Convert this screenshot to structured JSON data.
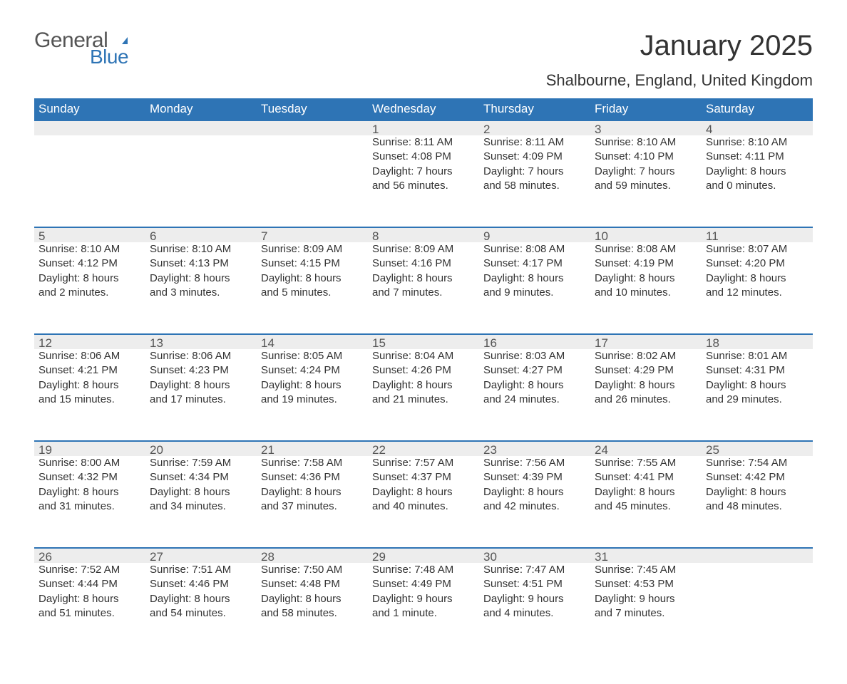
{
  "logo": {
    "word1": "General",
    "word2": "Blue",
    "flag_color": "#2e74b5",
    "word1_color": "#555555",
    "word2_color": "#2e74b5"
  },
  "title": "January 2025",
  "subtitle": "Shalbourne, England, United Kingdom",
  "colors": {
    "header_bg": "#2e74b5",
    "header_text": "#ffffff",
    "daynum_bg": "#ededed",
    "daynum_border": "#2e74b5",
    "text": "#333333",
    "daynum_text": "#555555",
    "background": "#ffffff"
  },
  "fontsize": {
    "title": 40,
    "subtitle": 22,
    "weekday": 17,
    "daynum": 17,
    "body": 15
  },
  "weekdays": [
    "Sunday",
    "Monday",
    "Tuesday",
    "Wednesday",
    "Thursday",
    "Friday",
    "Saturday"
  ],
  "weeks": [
    [
      null,
      null,
      null,
      {
        "n": "1",
        "sr": "Sunrise: 8:11 AM",
        "ss": "Sunset: 4:08 PM",
        "d1": "Daylight: 7 hours",
        "d2": "and 56 minutes."
      },
      {
        "n": "2",
        "sr": "Sunrise: 8:11 AM",
        "ss": "Sunset: 4:09 PM",
        "d1": "Daylight: 7 hours",
        "d2": "and 58 minutes."
      },
      {
        "n": "3",
        "sr": "Sunrise: 8:10 AM",
        "ss": "Sunset: 4:10 PM",
        "d1": "Daylight: 7 hours",
        "d2": "and 59 minutes."
      },
      {
        "n": "4",
        "sr": "Sunrise: 8:10 AM",
        "ss": "Sunset: 4:11 PM",
        "d1": "Daylight: 8 hours",
        "d2": "and 0 minutes."
      }
    ],
    [
      {
        "n": "5",
        "sr": "Sunrise: 8:10 AM",
        "ss": "Sunset: 4:12 PM",
        "d1": "Daylight: 8 hours",
        "d2": "and 2 minutes."
      },
      {
        "n": "6",
        "sr": "Sunrise: 8:10 AM",
        "ss": "Sunset: 4:13 PM",
        "d1": "Daylight: 8 hours",
        "d2": "and 3 minutes."
      },
      {
        "n": "7",
        "sr": "Sunrise: 8:09 AM",
        "ss": "Sunset: 4:15 PM",
        "d1": "Daylight: 8 hours",
        "d2": "and 5 minutes."
      },
      {
        "n": "8",
        "sr": "Sunrise: 8:09 AM",
        "ss": "Sunset: 4:16 PM",
        "d1": "Daylight: 8 hours",
        "d2": "and 7 minutes."
      },
      {
        "n": "9",
        "sr": "Sunrise: 8:08 AM",
        "ss": "Sunset: 4:17 PM",
        "d1": "Daylight: 8 hours",
        "d2": "and 9 minutes."
      },
      {
        "n": "10",
        "sr": "Sunrise: 8:08 AM",
        "ss": "Sunset: 4:19 PM",
        "d1": "Daylight: 8 hours",
        "d2": "and 10 minutes."
      },
      {
        "n": "11",
        "sr": "Sunrise: 8:07 AM",
        "ss": "Sunset: 4:20 PM",
        "d1": "Daylight: 8 hours",
        "d2": "and 12 minutes."
      }
    ],
    [
      {
        "n": "12",
        "sr": "Sunrise: 8:06 AM",
        "ss": "Sunset: 4:21 PM",
        "d1": "Daylight: 8 hours",
        "d2": "and 15 minutes."
      },
      {
        "n": "13",
        "sr": "Sunrise: 8:06 AM",
        "ss": "Sunset: 4:23 PM",
        "d1": "Daylight: 8 hours",
        "d2": "and 17 minutes."
      },
      {
        "n": "14",
        "sr": "Sunrise: 8:05 AM",
        "ss": "Sunset: 4:24 PM",
        "d1": "Daylight: 8 hours",
        "d2": "and 19 minutes."
      },
      {
        "n": "15",
        "sr": "Sunrise: 8:04 AM",
        "ss": "Sunset: 4:26 PM",
        "d1": "Daylight: 8 hours",
        "d2": "and 21 minutes."
      },
      {
        "n": "16",
        "sr": "Sunrise: 8:03 AM",
        "ss": "Sunset: 4:27 PM",
        "d1": "Daylight: 8 hours",
        "d2": "and 24 minutes."
      },
      {
        "n": "17",
        "sr": "Sunrise: 8:02 AM",
        "ss": "Sunset: 4:29 PM",
        "d1": "Daylight: 8 hours",
        "d2": "and 26 minutes."
      },
      {
        "n": "18",
        "sr": "Sunrise: 8:01 AM",
        "ss": "Sunset: 4:31 PM",
        "d1": "Daylight: 8 hours",
        "d2": "and 29 minutes."
      }
    ],
    [
      {
        "n": "19",
        "sr": "Sunrise: 8:00 AM",
        "ss": "Sunset: 4:32 PM",
        "d1": "Daylight: 8 hours",
        "d2": "and 31 minutes."
      },
      {
        "n": "20",
        "sr": "Sunrise: 7:59 AM",
        "ss": "Sunset: 4:34 PM",
        "d1": "Daylight: 8 hours",
        "d2": "and 34 minutes."
      },
      {
        "n": "21",
        "sr": "Sunrise: 7:58 AM",
        "ss": "Sunset: 4:36 PM",
        "d1": "Daylight: 8 hours",
        "d2": "and 37 minutes."
      },
      {
        "n": "22",
        "sr": "Sunrise: 7:57 AM",
        "ss": "Sunset: 4:37 PM",
        "d1": "Daylight: 8 hours",
        "d2": "and 40 minutes."
      },
      {
        "n": "23",
        "sr": "Sunrise: 7:56 AM",
        "ss": "Sunset: 4:39 PM",
        "d1": "Daylight: 8 hours",
        "d2": "and 42 minutes."
      },
      {
        "n": "24",
        "sr": "Sunrise: 7:55 AM",
        "ss": "Sunset: 4:41 PM",
        "d1": "Daylight: 8 hours",
        "d2": "and 45 minutes."
      },
      {
        "n": "25",
        "sr": "Sunrise: 7:54 AM",
        "ss": "Sunset: 4:42 PM",
        "d1": "Daylight: 8 hours",
        "d2": "and 48 minutes."
      }
    ],
    [
      {
        "n": "26",
        "sr": "Sunrise: 7:52 AM",
        "ss": "Sunset: 4:44 PM",
        "d1": "Daylight: 8 hours",
        "d2": "and 51 minutes."
      },
      {
        "n": "27",
        "sr": "Sunrise: 7:51 AM",
        "ss": "Sunset: 4:46 PM",
        "d1": "Daylight: 8 hours",
        "d2": "and 54 minutes."
      },
      {
        "n": "28",
        "sr": "Sunrise: 7:50 AM",
        "ss": "Sunset: 4:48 PM",
        "d1": "Daylight: 8 hours",
        "d2": "and 58 minutes."
      },
      {
        "n": "29",
        "sr": "Sunrise: 7:48 AM",
        "ss": "Sunset: 4:49 PM",
        "d1": "Daylight: 9 hours",
        "d2": "and 1 minute."
      },
      {
        "n": "30",
        "sr": "Sunrise: 7:47 AM",
        "ss": "Sunset: 4:51 PM",
        "d1": "Daylight: 9 hours",
        "d2": "and 4 minutes."
      },
      {
        "n": "31",
        "sr": "Sunrise: 7:45 AM",
        "ss": "Sunset: 4:53 PM",
        "d1": "Daylight: 9 hours",
        "d2": "and 7 minutes."
      },
      null
    ]
  ]
}
